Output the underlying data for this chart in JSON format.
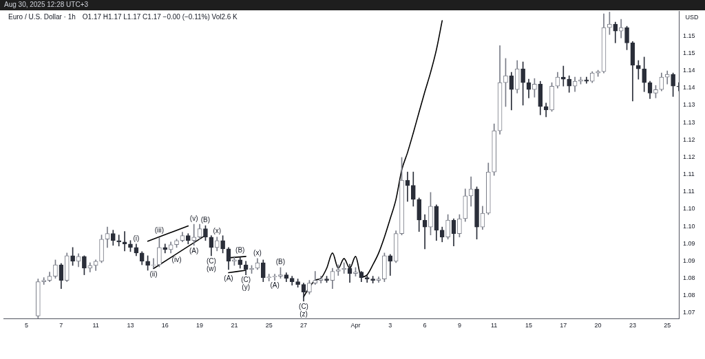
{
  "chart_data": {
    "type": "candlestick",
    "title": "Euro / U.S. Dollar · 1h",
    "subtitle": "O1.17 H1.17 L1.17 C1.17 −0.00 (−0.11%) Vol2.6 K",
    "ylabel": "USD",
    "categories": [
      null,
      null,
      null,
      null,
      "5",
      null,
      null,
      null,
      null,
      null,
      "7",
      null,
      null,
      null,
      null,
      null,
      "11",
      null,
      null,
      null,
      null,
      null,
      "13",
      null,
      null,
      null,
      null,
      null,
      "16",
      null,
      null,
      null,
      null,
      null,
      "19",
      null,
      null,
      null,
      null,
      null,
      "21",
      null,
      null,
      null,
      null,
      null,
      "25",
      null,
      null,
      null,
      null,
      null,
      "27",
      null,
      null,
      null,
      null,
      null,
      null,
      null,
      null,
      "Apr",
      null,
      null,
      null,
      null,
      null,
      "3",
      null,
      null,
      null,
      null,
      null,
      "6",
      null,
      null,
      null,
      null,
      null,
      "9",
      null,
      null,
      null,
      null,
      null,
      "11",
      null,
      null,
      null,
      null,
      null,
      "15",
      null,
      null,
      null,
      null,
      null,
      "17",
      null,
      null,
      null,
      null,
      null,
      "20",
      null,
      null,
      null,
      null,
      null,
      "23",
      null,
      null,
      null,
      null,
      null,
      "25",
      null,
      null
    ],
    "ohlc": [
      null,
      null,
      null,
      null,
      null,
      null,
      [
        1.0691,
        1.0798,
        1.0685,
        1.079
      ],
      [
        1.079,
        1.0802,
        1.0782,
        1.0794
      ],
      [
        1.0794,
        1.0818,
        1.079,
        1.0806
      ],
      [
        1.0806,
        1.0853,
        1.08,
        1.0839
      ],
      [
        1.0839,
        1.0843,
        1.077,
        1.0794
      ],
      [
        1.0794,
        1.0873,
        1.079,
        1.0865
      ],
      [
        1.0865,
        1.0889,
        1.0837,
        1.0849
      ],
      [
        1.0849,
        1.0871,
        1.0833,
        1.0863
      ],
      [
        1.0863,
        1.0865,
        1.081,
        1.0829
      ],
      [
        1.0829,
        1.0845,
        1.0818,
        1.0837
      ],
      [
        1.0837,
        1.0853,
        1.0822,
        1.0849
      ],
      [
        1.0849,
        1.0925,
        1.0845,
        1.0913
      ],
      [
        1.0913,
        1.0948,
        1.0889,
        1.0929
      ],
      [
        1.0929,
        1.0939,
        1.0895,
        1.0909
      ],
      [
        1.0909,
        1.0925,
        1.0893,
        1.0905
      ],
      [
        1.0905,
        1.0935,
        1.0879,
        1.0899
      ],
      [
        1.0899,
        1.0909,
        1.0877,
        1.0889
      ],
      [
        1.0889,
        1.0899,
        1.0865,
        1.0873
      ],
      [
        1.0873,
        1.0877,
        1.0839,
        1.0849
      ],
      [
        1.0849,
        1.0865,
        1.0823,
        1.0837
      ],
      [
        1.0837,
        1.0857,
        1.0829,
        1.0839
      ],
      [
        1.0839,
        1.0917,
        1.0833,
        1.0889
      ],
      [
        1.0889,
        1.0899,
        1.0873,
        1.0883
      ],
      [
        1.0883,
        1.0905,
        1.0873,
        1.0897
      ],
      [
        1.0897,
        1.0913,
        1.0889,
        1.0909
      ],
      [
        1.0909,
        1.0933,
        1.0905,
        1.0923
      ],
      [
        1.0923,
        1.0929,
        1.0899,
        1.0909
      ],
      [
        1.0909,
        1.0956,
        1.0895,
        1.0919
      ],
      [
        1.0919,
        1.0956,
        1.0913,
        1.0943
      ],
      [
        1.0943,
        1.0952,
        1.0909,
        1.0919
      ],
      [
        1.0919,
        1.0923,
        1.0865,
        1.0889
      ],
      [
        1.0889,
        1.0919,
        1.0879,
        1.0909
      ],
      [
        1.0909,
        1.0923,
        1.0873,
        1.0885
      ],
      [
        1.0885,
        1.0889,
        1.0825,
        1.0849
      ],
      [
        1.0849,
        1.0863,
        1.0837,
        1.0853
      ],
      [
        1.0853,
        1.0861,
        1.0829,
        1.0839
      ],
      [
        1.0839,
        1.0849,
        1.081,
        1.0825
      ],
      [
        1.0825,
        1.0837,
        1.0814,
        1.0829
      ],
      [
        1.0829,
        1.0857,
        1.0825,
        1.0845
      ],
      [
        1.0845,
        1.0853,
        1.079,
        1.0802
      ],
      [
        1.0802,
        1.0812,
        1.0792,
        1.0804
      ],
      [
        1.0804,
        1.0812,
        1.0794,
        1.0806
      ],
      [
        1.0806,
        1.0831,
        1.08,
        1.081
      ],
      [
        1.081,
        1.0816,
        1.079,
        1.08
      ],
      [
        1.08,
        1.0806,
        1.078,
        1.079
      ],
      [
        1.079,
        1.0798,
        1.0774,
        1.0782
      ],
      [
        1.0782,
        1.0786,
        1.0734,
        1.076
      ],
      [
        1.076,
        1.0794,
        1.0754,
        1.0786
      ],
      [
        1.0786,
        1.082,
        1.0782,
        1.0794
      ],
      [
        1.0794,
        1.0806,
        1.0786,
        1.0798
      ],
      [
        1.0798,
        1.0806,
        1.0788,
        1.0794
      ],
      [
        1.0794,
        1.0829,
        1.077,
        1.082
      ],
      [
        1.082,
        1.0839,
        1.0808,
        1.0825
      ],
      [
        1.0825,
        1.0845,
        1.0814,
        1.0829
      ],
      [
        1.0829,
        1.0841,
        1.0788,
        1.0814
      ],
      [
        1.0814,
        1.0831,
        1.0806,
        1.0818
      ],
      [
        1.0818,
        1.082,
        1.079,
        1.0802
      ],
      [
        1.0802,
        1.0808,
        1.0788,
        1.0798
      ],
      [
        1.0798,
        1.0806,
        1.0786,
        1.0794
      ],
      [
        1.0794,
        1.0804,
        1.0788,
        1.0798
      ],
      [
        1.0798,
        1.0873,
        1.079,
        1.0865
      ],
      [
        1.0865,
        1.0869,
        1.0808,
        1.0849
      ],
      [
        1.0849,
        1.0937,
        1.0845,
        1.0929
      ],
      [
        1.0929,
        1.1149,
        1.0925,
        1.1083
      ],
      [
        1.1083,
        1.1107,
        1.1022,
        1.1068
      ],
      [
        1.1068,
        1.1107,
        1.1008,
        1.1028
      ],
      [
        1.1028,
        1.1032,
        1.0935,
        1.0968
      ],
      [
        1.0968,
        1.0984,
        1.0885,
        1.0948
      ],
      [
        1.0948,
        1.1048,
        1.0925,
        1.1008
      ],
      [
        1.1008,
        1.1012,
        1.0909,
        1.0939
      ],
      [
        1.0939,
        1.0948,
        1.0905,
        1.0919
      ],
      [
        1.0919,
        1.0984,
        1.0913,
        1.0968
      ],
      [
        1.0968,
        1.0972,
        1.0893,
        1.0929
      ],
      [
        1.0929,
        1.0984,
        1.0919,
        1.0972
      ],
      [
        1.0972,
        1.1058,
        1.0964,
        1.1038
      ],
      [
        1.1038,
        1.1093,
        1.1008,
        1.1058
      ],
      [
        1.1058,
        1.1064,
        1.0913,
        1.0948
      ],
      [
        1.0948,
        1.1008,
        1.0941,
        1.0988
      ],
      [
        1.0988,
        1.1133,
        1.0984,
        1.1107
      ],
      [
        1.1107,
        1.1246,
        1.1097,
        1.1226
      ],
      [
        1.1226,
        1.1472,
        1.1216,
        1.1365
      ],
      [
        1.1365,
        1.1435,
        1.1296,
        1.1385
      ],
      [
        1.1385,
        1.1395,
        1.1286,
        1.1345
      ],
      [
        1.1345,
        1.1429,
        1.1335,
        1.1405
      ],
      [
        1.1405,
        1.1425,
        1.13,
        1.1365
      ],
      [
        1.1365,
        1.1375,
        1.1321,
        1.1345
      ],
      [
        1.1345,
        1.1377,
        1.1323,
        1.1361
      ],
      [
        1.1361,
        1.1369,
        1.1272,
        1.1296
      ],
      [
        1.1296,
        1.1306,
        1.1266,
        1.1286
      ],
      [
        1.1286,
        1.1365,
        1.1282,
        1.1355
      ],
      [
        1.1355,
        1.1395,
        1.1349,
        1.1381
      ],
      [
        1.1381,
        1.1413,
        1.1355,
        1.1375
      ],
      [
        1.1375,
        1.1385,
        1.1337,
        1.1355
      ],
      [
        1.1355,
        1.1381,
        1.1339,
        1.1369
      ],
      [
        1.1369,
        1.1381,
        1.1361,
        1.1373
      ],
      [
        1.1373,
        1.1381,
        1.1363,
        1.1369
      ],
      [
        1.1369,
        1.1397,
        1.1365,
        1.1393
      ],
      [
        1.1393,
        1.1401,
        1.1383,
        1.1397
      ],
      [
        1.1397,
        1.1564,
        1.1393,
        1.1524
      ],
      [
        1.1524,
        1.1569,
        1.1504,
        1.1534
      ],
      [
        1.1534,
        1.154,
        1.148,
        1.1514
      ],
      [
        1.1514,
        1.1548,
        1.1494,
        1.1524
      ],
      [
        1.1524,
        1.1528,
        1.146,
        1.148
      ],
      [
        1.148,
        1.1484,
        1.1312,
        1.1415
      ],
      [
        1.1415,
        1.1429,
        1.1375,
        1.1405
      ],
      [
        1.1405,
        1.1439,
        1.1339,
        1.1365
      ],
      [
        1.1365,
        1.1369,
        1.1319,
        1.1335
      ],
      [
        1.1335,
        1.1357,
        1.1321,
        1.1345
      ],
      [
        1.1345,
        1.1393,
        1.1341,
        1.1381
      ],
      [
        1.1381,
        1.1399,
        1.1361,
        1.1389
      ],
      [
        1.1389,
        1.1393,
        1.1325,
        1.1355
      ],
      [
        1.1355,
        1.1365,
        1.1341,
        1.1353
      ]
    ],
    "colors": [
      null,
      null,
      null,
      null,
      null,
      null,
      "#787b86",
      "#787b86",
      "#787b86",
      "#787b86",
      "#2a2e39",
      "#787b86",
      "#2a2e39",
      "#787b86",
      "#2a2e39",
      "#787b86",
      "#787b86",
      "#787b86",
      "#787b86",
      "#2a2e39",
      "#2a2e39",
      "#2a2e39",
      "#2a2e39",
      "#2a2e39",
      "#2a2e39",
      "#2a2e39",
      "#787b86",
      "#787b86",
      "#2a2e39",
      "#787b86",
      "#787b86",
      "#787b86",
      "#2a2e39",
      "#787b86",
      "#787b86",
      "#2a2e39",
      "#2a2e39",
      "#787b86",
      "#2a2e39",
      "#2a2e39",
      "#787b86",
      "#2a2e39",
      "#2a2e39",
      "#787b86",
      "#787b86",
      "#2a2e39",
      "#787b86",
      "#787b86",
      "#787b86",
      "#2a2e39",
      "#2a2e39",
      "#2a2e39",
      "#2a2e39",
      "#787b86",
      "#787b86",
      "#787b86",
      "#2a2e39",
      "#787b86",
      "#787b86",
      "#787b86",
      "#2a2e39",
      "#787b86",
      "#2a2e39",
      "#2a2e39",
      "#2a2e39",
      "#787b86",
      "#787b86",
      "#2a2e39",
      "#787b86",
      "#787b86",
      "#2a2e39",
      "#2a2e39",
      "#2a2e39",
      "#2a2e39",
      "#787b86",
      "#2a2e39",
      "#2a2e39",
      "#787b86",
      "#2a2e39",
      "#787b86",
      "#787b86",
      "#787b86",
      "#2a2e39",
      "#787b86",
      "#787b86",
      "#787b86",
      "#787b86",
      "#787b86",
      "#2a2e39",
      "#787b86",
      "#2a2e39",
      "#2a2e39",
      "#787b86",
      "#2a2e39",
      "#2a2e39",
      "#787b86",
      "#787b86",
      "#2a2e39",
      "#2a2e39",
      "#787b86",
      "#787b86",
      "#2a2e39",
      "#787b86",
      "#787b86",
      "#787b86",
      "#787b86",
      "#2a2e39",
      "#787b86",
      "#2a2e39",
      "#2a2e39",
      "#2a2e39",
      "#2a2e39",
      "#2a2e39",
      "#787b86",
      "#787b86",
      "#787b86",
      "#2a2e39",
      "#2a2e39"
    ],
    "series": [
      {
        "type": "line",
        "color": "#000000",
        "values": [
          null,
          null,
          null,
          null,
          null,
          null,
          null,
          null,
          null,
          null,
          null,
          null,
          null,
          null,
          null,
          null,
          null,
          null,
          null,
          null,
          null,
          null,
          null,
          null,
          null,
          null,
          null,
          null,
          null,
          null,
          null,
          null,
          null,
          null,
          null,
          null,
          null,
          null,
          null,
          null,
          null,
          null,
          null,
          null,
          null,
          null,
          null,
          null,
          null,
          null,
          null,
          null,
          1.0746,
          1.0774,
          1.0794,
          1.08,
          1.0829,
          1.0873,
          1.0829,
          1.0857,
          1.0829,
          1.0863,
          1.0804,
          1.081,
          1.0839,
          1.0873,
          1.0919,
          1.0972,
          1.1028,
          1.1113,
          1.1163,
          1.122,
          1.128,
          1.1339,
          1.1395,
          1.146,
          1.1544,
          null,
          null,
          null,
          null,
          null,
          null,
          null,
          null,
          null,
          null,
          null,
          null,
          null,
          null,
          null,
          null,
          null,
          null,
          null,
          null,
          null,
          null,
          null,
          null,
          null,
          null,
          null,
          null,
          null,
          null,
          null,
          null,
          null,
          null,
          null,
          null,
          null,
          null,
          null,
          null,
          null
        ]
      },
      {
        "type": "line",
        "color": "#000000",
        "values": [
          null,
          null,
          null,
          null,
          null,
          null,
          null,
          null,
          null,
          null,
          null,
          null,
          null,
          null,
          null,
          null,
          null,
          null,
          null,
          null,
          null,
          null,
          null,
          null,
          null,
          1.0907,
          null,
          null,
          null,
          null,
          null,
          null,
          1.0951,
          null,
          null,
          null,
          null,
          null,
          null,
          null,
          null,
          null,
          null,
          null,
          null,
          null,
          null,
          null,
          null,
          null,
          null,
          null,
          null,
          null,
          null,
          null,
          null,
          null,
          null,
          null,
          null,
          null,
          null,
          null,
          null,
          null,
          null,
          null,
          null,
          null,
          null,
          null,
          null,
          null,
          null,
          null,
          null,
          null,
          null,
          null,
          null,
          null,
          null,
          null,
          null,
          null,
          null,
          null,
          null,
          null,
          null,
          null,
          null,
          null,
          null,
          null,
          null,
          null,
          null,
          null,
          null,
          null,
          null,
          null,
          null,
          null,
          null,
          null,
          null,
          null,
          null,
          null,
          null,
          null,
          null,
          null,
          null,
          null
        ]
      },
      {
        "type": "line",
        "color": "#000000",
        "values": [
          null,
          null,
          null,
          null,
          null,
          null,
          null,
          null,
          null,
          null,
          null,
          null,
          null,
          null,
          null,
          null,
          null,
          null,
          null,
          null,
          null,
          null,
          null,
          null,
          null,
          null,
          1.0828,
          null,
          null,
          null,
          null,
          null,
          null,
          null,
          null,
          1.0924,
          null,
          null,
          null,
          null,
          null,
          null,
          null,
          null,
          null,
          null,
          null,
          null,
          null,
          null,
          null,
          null,
          null,
          null,
          null,
          null,
          null,
          null,
          null,
          null,
          null,
          null,
          null,
          null,
          null,
          null,
          null,
          null,
          null,
          null,
          null,
          null,
          null,
          null,
          null,
          null,
          null,
          null,
          null,
          null,
          null,
          null,
          null,
          null,
          null,
          null,
          null,
          null,
          null,
          null,
          null,
          null,
          null,
          null,
          null,
          null,
          null,
          null,
          null,
          null,
          null,
          null,
          null,
          null,
          null,
          null,
          null,
          null,
          null,
          null,
          null,
          null,
          null,
          null,
          null,
          null,
          null,
          null
        ]
      },
      {
        "type": "line",
        "color": "#000000",
        "values": [
          null,
          null,
          null,
          null,
          null,
          null,
          null,
          null,
          null,
          null,
          null,
          null,
          null,
          null,
          null,
          null,
          null,
          null,
          null,
          null,
          null,
          null,
          null,
          null,
          null,
          null,
          null,
          null,
          null,
          null,
          null,
          null,
          null,
          null,
          null,
          null,
          null,
          null,
          null,
          1.0859,
          null,
          null,
          1.0863,
          null,
          null,
          null,
          null,
          null,
          null,
          null,
          null,
          null,
          null,
          null,
          null,
          null,
          null,
          null,
          null,
          null,
          null,
          null,
          null,
          null,
          null,
          null,
          null,
          null,
          null,
          null,
          null,
          null,
          null,
          null,
          null,
          null,
          null,
          null,
          null,
          null,
          null,
          null,
          null,
          null,
          null,
          null,
          null,
          null,
          null,
          null,
          null,
          null,
          null,
          null,
          null,
          null,
          null,
          null,
          null,
          null,
          null,
          null,
          null,
          null,
          null,
          null,
          null,
          null,
          null,
          null,
          null,
          null,
          null,
          null,
          null,
          null,
          null,
          null
        ]
      },
      {
        "type": "line",
        "color": "#000000",
        "values": [
          null,
          null,
          null,
          null,
          null,
          null,
          null,
          null,
          null,
          null,
          null,
          null,
          null,
          null,
          null,
          null,
          null,
          null,
          null,
          null,
          null,
          null,
          null,
          null,
          null,
          null,
          null,
          null,
          null,
          null,
          null,
          null,
          null,
          null,
          null,
          null,
          null,
          null,
          null,
          1.0816,
          null,
          null,
          1.0823,
          null,
          null,
          null,
          null,
          null,
          null,
          null,
          null,
          null,
          null,
          null,
          null,
          null,
          null,
          null,
          null,
          null,
          null,
          null,
          null,
          null,
          null,
          null,
          null,
          null,
          null,
          null,
          null,
          null,
          null,
          null,
          null,
          null,
          null,
          null,
          null,
          null,
          null,
          null,
          null,
          null,
          null,
          null,
          null,
          null,
          null,
          null,
          null,
          null,
          null,
          null,
          null,
          null,
          null,
          null,
          null,
          null,
          null,
          null,
          null,
          null,
          null,
          null,
          null,
          null,
          null,
          null,
          null,
          null,
          null,
          null,
          null,
          null,
          null,
          null
        ]
      }
    ],
    "ylim": [
      1.0684,
      1.1572
    ],
    "yticks": [
      1.07,
      {
        "value": 1.075,
        "label": "1.08"
      },
      1.08,
      {
        "value": 1.085,
        "label": "1.09"
      },
      1.09,
      {
        "value": 1.095,
        "label": "1.10"
      },
      {
        "value": 1.1,
        "label": "1.10"
      },
      {
        "value": 1.105,
        "label": "1.11"
      },
      1.11,
      {
        "value": 1.115,
        "label": "1.12"
      },
      1.12,
      {
        "value": 1.125,
        "label": "1.13"
      },
      1.13,
      {
        "value": 1.135,
        "label": "1.14"
      },
      1.14,
      {
        "value": 1.145,
        "label": "1.15"
      },
      1.15
    ],
    "annotations": [
      "Aug 30, 2025 12:28 UTC+3",
      {
        "text": "(i)",
        "y": 1.0899
      },
      {
        "text": "(ii)",
        "y": 1.0829
      },
      {
        "text": "(iii)",
        "y": 1.0917
      },
      {
        "text": "(iv)",
        "y": 1.0889
      },
      {
        "text": "(v)",
        "y": 1.0956
      },
      {
        "text": "(A)",
        "y": 1.0895
      },
      {
        "text": "(B)",
        "y": 1.0952
      },
      {
        "text": "(C)",
        "y": 1.0865
      },
      {
        "text": "(w)",
        "y": 1.0865
      },
      {
        "text": "(x)",
        "y": 1.0919
      },
      {
        "text": "(A)",
        "y": 1.0825
      },
      {
        "text": "(B)",
        "y": 1.0861
      },
      {
        "text": "(C)",
        "y": 1.081
      },
      {
        "text": "(y)",
        "y": 1.081
      },
      {
        "text": "(x)",
        "y": 1.0857
      },
      {
        "text": "(A)",
        "y": 1.0794
      },
      {
        "text": "(B)",
        "y": 1.0831
      },
      {
        "text": "(C)",
        "y": 1.0734
      },
      {
        "text": "(z)",
        "y": 1.0734
      }
    ]
  }
}
